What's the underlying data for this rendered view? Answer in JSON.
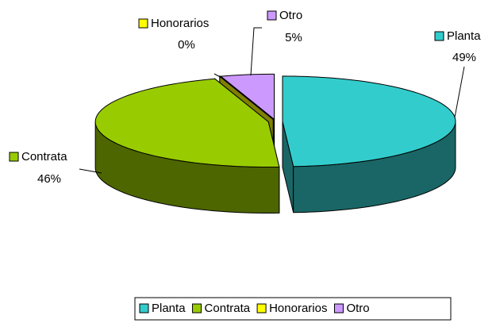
{
  "chart_data": {
    "type": "pie",
    "categories": [
      "Planta",
      "Contrata",
      "Honorarios",
      "Otro"
    ],
    "values": [
      49,
      46,
      0,
      5
    ],
    "value_labels": [
      "49%",
      "46%",
      "0%",
      "5%"
    ],
    "colors": [
      "#33CCCC",
      "#99CC00",
      "#FFFF00",
      "#CC99FF"
    ],
    "legend": "bottom"
  }
}
